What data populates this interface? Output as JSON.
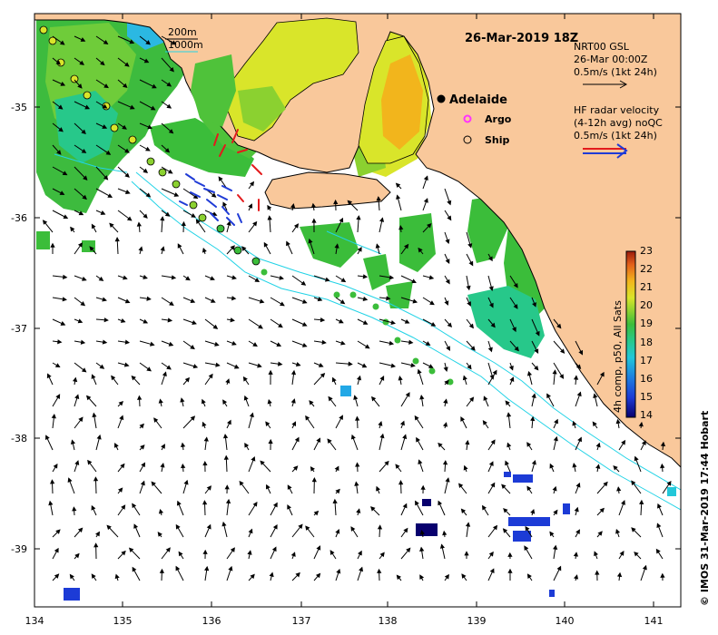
{
  "title": "26-Mar-2019 18Z",
  "credit": "© IMOS 31-Mar-2019 17:44 Hobart",
  "city": "Adelaide",
  "axes": {
    "x_ticks": [
      "134",
      "135",
      "136",
      "137",
      "138",
      "139",
      "140",
      "141"
    ],
    "y_ticks": [
      "-35",
      "-36",
      "-37",
      "-38",
      "-39"
    ]
  },
  "isobath_legend": {
    "line1": "200m",
    "line2": "1000m"
  },
  "legend_markers": {
    "argo": "Argo",
    "ship": "Ship"
  },
  "gsl_legend": {
    "line1": "NRT00 GSL",
    "line2": "26-Mar 00:00Z",
    "line3": "0.5m/s (1kt 24h)"
  },
  "hf_legend": {
    "line1": "HF radar velocity",
    "line2": "(4-12h avg) noQC",
    "line3": "0.5m/s (1kt 24h)"
  },
  "colorbar": {
    "label": "4h comp, p50, All Sats",
    "ticks": [
      "14",
      "15",
      "16",
      "17",
      "18",
      "19",
      "20",
      "21",
      "22",
      "23"
    ]
  },
  "colors": {
    "land": "#f9c89b",
    "water": "#ffffff",
    "isobath": "#22d3e6",
    "argo": "#ff33ff",
    "hf_red": "#e31a1c",
    "hf_blue": "#1f3bd6"
  }
}
